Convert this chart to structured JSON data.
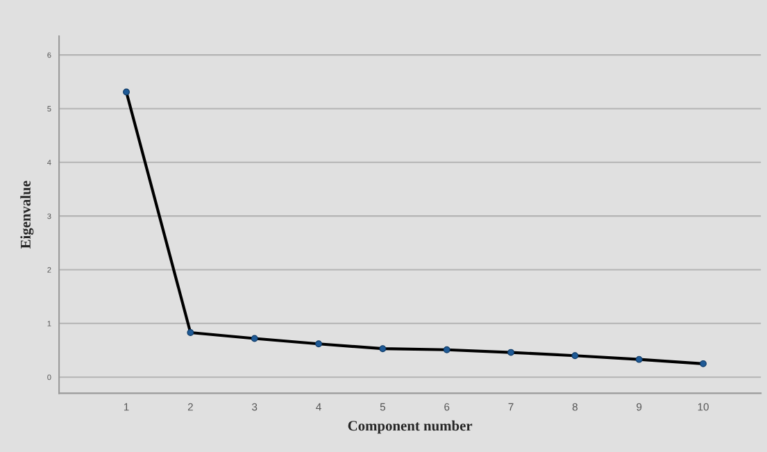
{
  "chart_data": {
    "type": "line",
    "xlabel": "Component number",
    "ylabel": "Eigenvalue",
    "x": [
      1,
      2,
      3,
      4,
      5,
      6,
      7,
      8,
      9,
      10
    ],
    "series": [
      {
        "color": "#000000",
        "values": [
          5.31,
          0.83,
          0.72,
          0.62,
          0.53,
          0.51,
          0.46,
          0.4,
          0.33,
          0.25
        ]
      }
    ],
    "marker": "circle",
    "line_style": "solid",
    "grid": "y",
    "xlim": [
      -0.05,
      10.9
    ],
    "xticks": [
      1,
      2,
      3,
      4,
      5,
      6,
      7,
      8,
      9,
      10
    ],
    "ylim": [
      -0.3,
      6.35
    ],
    "yticks": [
      0,
      1,
      2,
      3,
      4,
      5,
      6
    ]
  }
}
